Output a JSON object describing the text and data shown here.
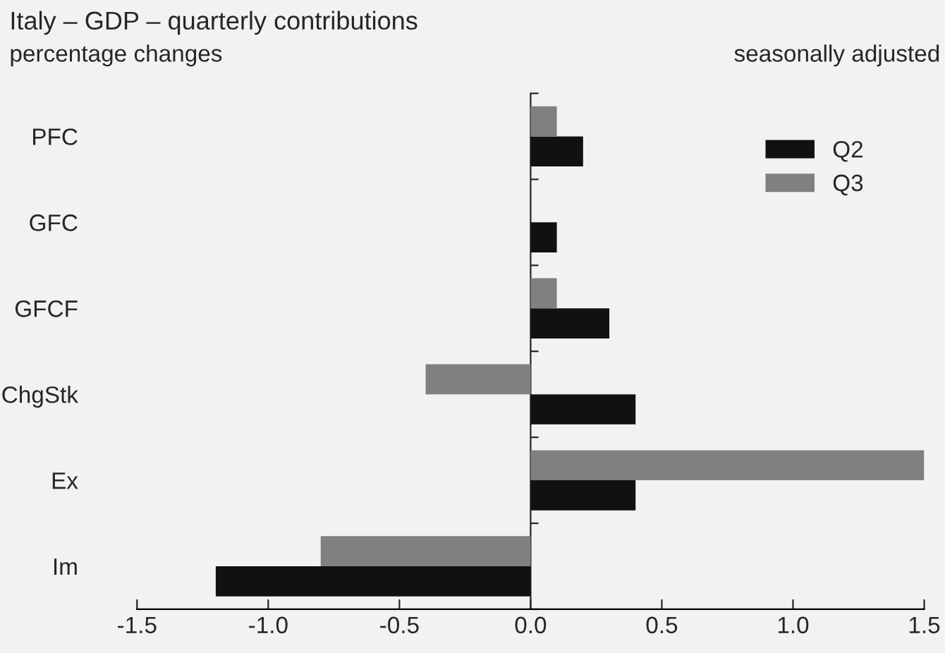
{
  "chart_data": {
    "type": "bar",
    "orientation": "horizontal",
    "title": "Italy – GDP – quarterly contributions",
    "annotations": [
      "percentage changes",
      "seasonally adjusted"
    ],
    "categories": [
      "PFC",
      "GFC",
      "GFCF",
      "ChgStk",
      "Ex",
      "Im"
    ],
    "series": [
      {
        "name": "Q2",
        "color": "#111111",
        "values": [
          0.2,
          0.1,
          0.3,
          0.4,
          0.4,
          -1.2
        ]
      },
      {
        "name": "Q3",
        "color": "#808080",
        "values": [
          0.1,
          null,
          0.1,
          -0.4,
          1.5,
          -0.8
        ]
      }
    ],
    "xlim": [
      -1.5,
      1.5
    ],
    "xticks": [
      -1.5,
      {
        "value": -1,
        "label": "-1.0"
      },
      -0.5,
      {
        "value": 0,
        "label": "0.0"
      },
      0.5,
      {
        "value": 1,
        "label": "1.0"
      },
      1.5
    ],
    "legend": "top right"
  }
}
